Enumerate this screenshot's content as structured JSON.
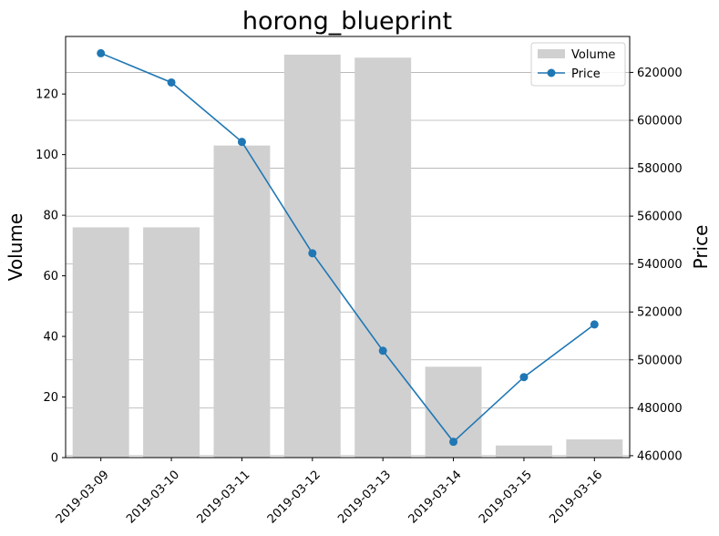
{
  "chart_data": {
    "type": "bar",
    "title": "horong_blueprint",
    "categories": [
      "2019-03-09",
      "2019-03-10",
      "2019-03-11",
      "2019-03-12",
      "2019-03-13",
      "2019-03-14",
      "2019-03-15",
      "2019-03-16"
    ],
    "series": [
      {
        "name": "Volume",
        "type": "bar",
        "axis": "left",
        "color": "#d0d0d0",
        "values": [
          76,
          76,
          103,
          133,
          132,
          30,
          4,
          6
        ]
      },
      {
        "name": "Price",
        "type": "line",
        "axis": "right",
        "color": "#1f77b4",
        "values": [
          628000,
          615800,
          591000,
          544500,
          503800,
          465800,
          492800,
          514800
        ]
      }
    ],
    "ylabel": "Volume",
    "y2label": "Price",
    "ylim": [
      0,
      139
    ],
    "y2lim": [
      459200,
      635000
    ],
    "yticks": [
      0,
      20,
      40,
      60,
      80,
      100,
      120
    ],
    "y2ticks": [
      460000,
      480000,
      500000,
      520000,
      540000,
      560000,
      580000,
      600000,
      620000
    ],
    "grid": "horizontal (right axis)",
    "legend_position": "top-right"
  }
}
